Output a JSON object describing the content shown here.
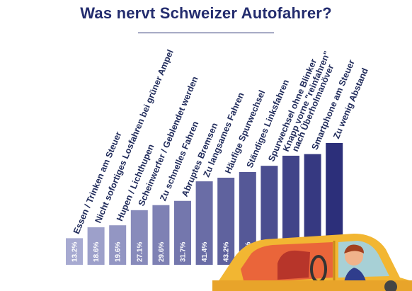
{
  "title": "Was nervt Schweizer Autofahrer?",
  "colors": {
    "title": "#232c6e",
    "bar_light": "#a7aad1",
    "bar_dark": "#2c2f7a",
    "label": "#1f2a5a",
    "car_body": "#f2b632",
    "car_dark": "#c9891a",
    "car_interior": "#d9462e"
  },
  "chart_data": {
    "type": "bar",
    "title": "Was nervt Schweizer Autofahrer?",
    "categories": [
      "Essen / Trinken am Steuer",
      "Nicht sofortiges Losfahren bei grüner Ampel",
      "Hupen / Lichthupen",
      "Scheinwerfer / Geblendet werden",
      "Zu schnelles Fahren",
      "Abruptes Bremsen",
      "Zu langsames Fahren",
      "Häufige Spurwechsel",
      "Ständiges Linksfahren",
      "Spurwechsel ohne Blinker",
      "Knapp vorne \"reinfahren\" nach Überholmanöver",
      "Smartphone am Steuer",
      "Zu wenig Abstand"
    ],
    "values": [
      13.2,
      18.6,
      19.6,
      27.1,
      29.6,
      31.7,
      41.4,
      43.2,
      46.0,
      49.1,
      54.1,
      54.9,
      60.4
    ],
    "value_labels": [
      "13.2%",
      "18.6%",
      "19.6%",
      "27.1%",
      "29.6%",
      "31.7%",
      "41.4%",
      "43.2%",
      "46.0%",
      "49.1%",
      "54.1%",
      "54.9%",
      "60.4%"
    ],
    "ylim": [
      0,
      60.4
    ],
    "xlabel": "",
    "ylabel": "",
    "grid": false,
    "legend": "none"
  }
}
